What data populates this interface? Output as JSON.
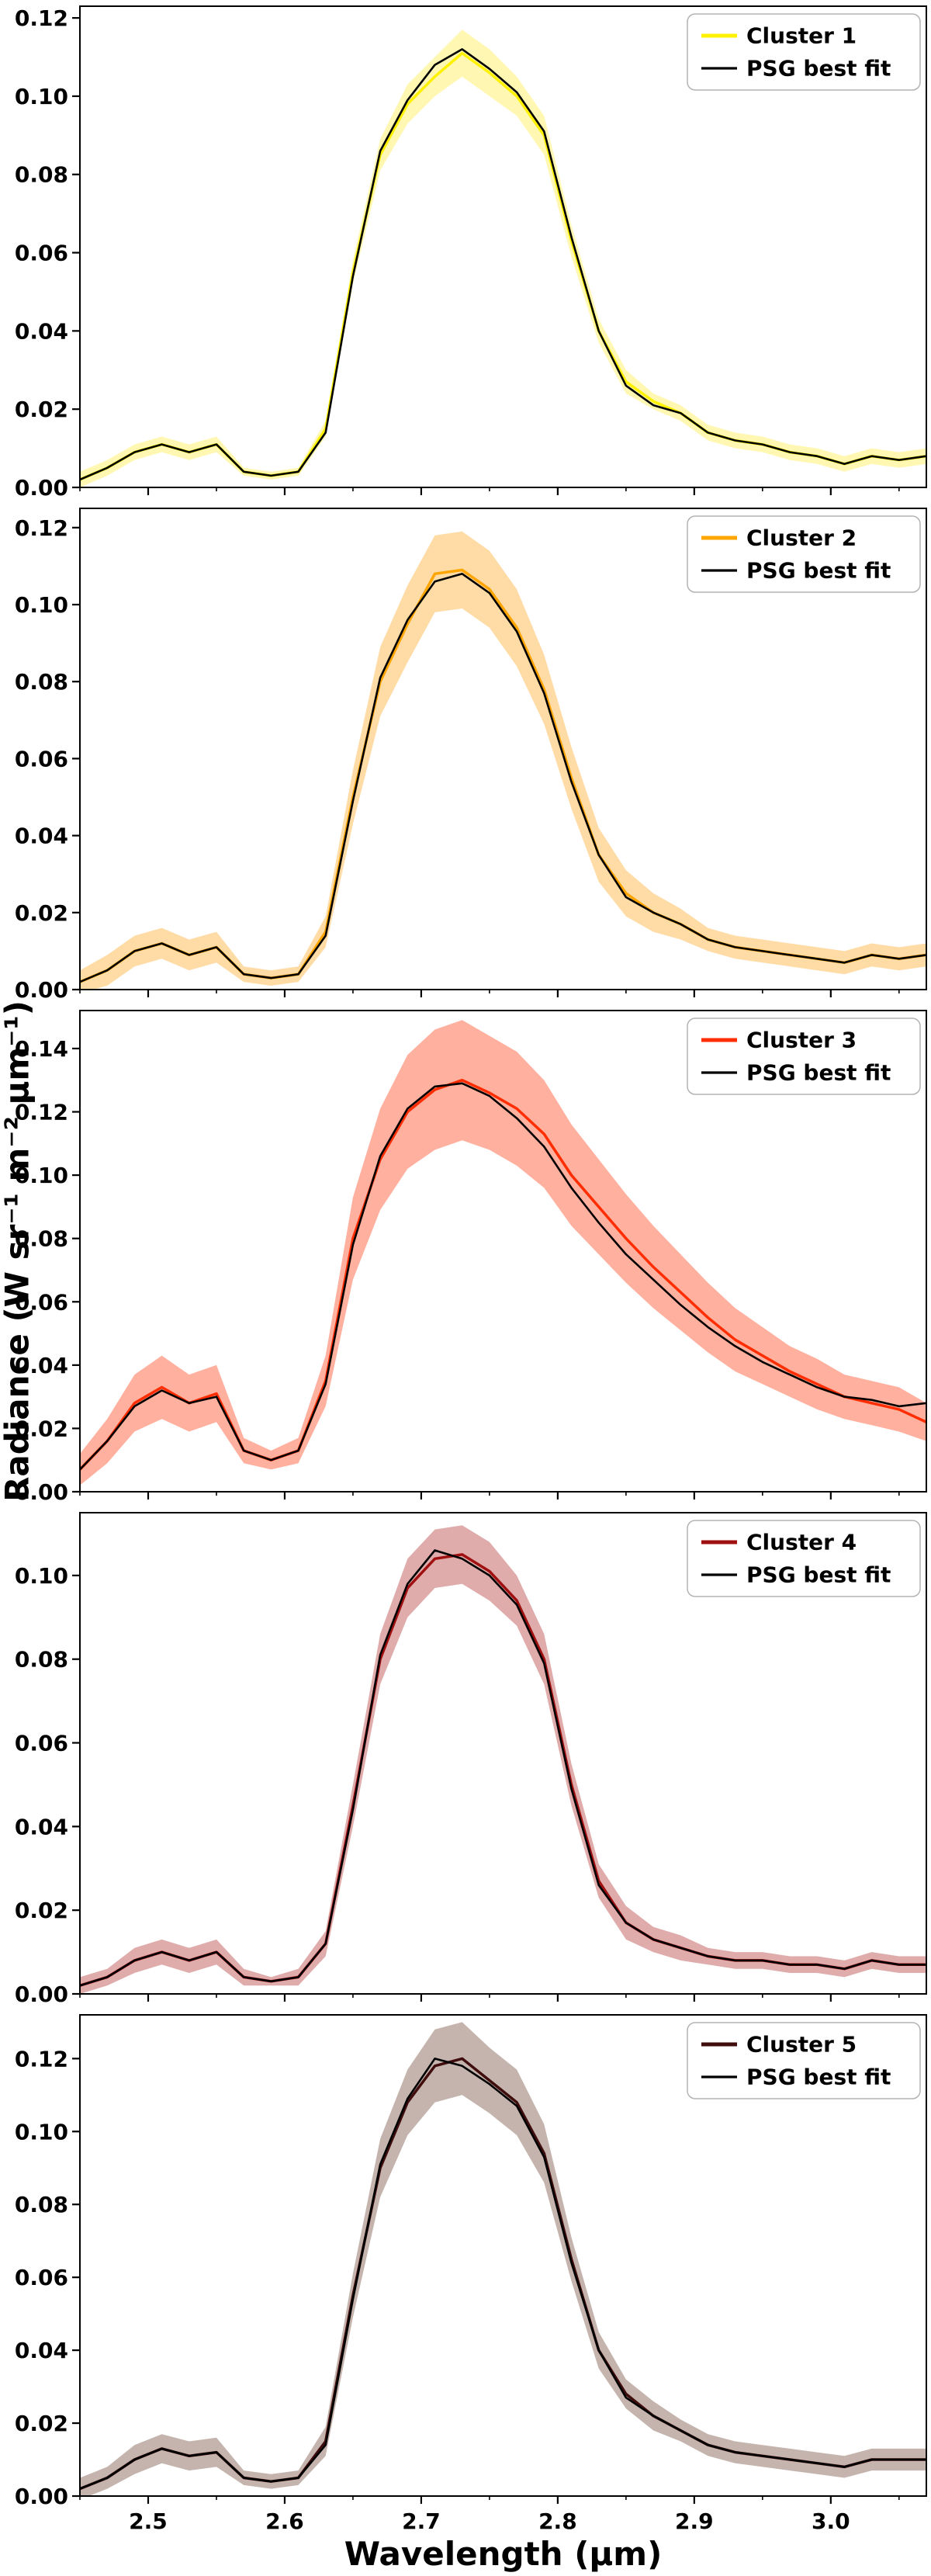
{
  "chart_data": {
    "type": "line",
    "layout": "five vertically stacked spectrum panels sharing one x-axis, grid off, legend upper-right inside each panel",
    "xlabel": "Wavelength (μm)",
    "ylabel": "Radiance (W sr⁻¹ m⁻² μm⁻¹)",
    "xlim": [
      2.45,
      3.07
    ],
    "xticks": [
      2.5,
      2.6,
      2.7,
      2.8,
      2.9,
      3.0
    ],
    "xminorticks": [
      2.45,
      2.55,
      2.65,
      2.75,
      2.85,
      2.95,
      3.05
    ],
    "x": [
      2.45,
      2.47,
      2.49,
      2.51,
      2.53,
      2.55,
      2.57,
      2.59,
      2.61,
      2.63,
      2.65,
      2.67,
      2.69,
      2.71,
      2.73,
      2.75,
      2.77,
      2.79,
      2.81,
      2.83,
      2.85,
      2.87,
      2.89,
      2.91,
      2.93,
      2.95,
      2.97,
      2.99,
      3.01,
      3.03,
      3.05,
      3.07
    ],
    "panels": [
      {
        "legend": [
          "Cluster 1",
          "PSG best fit"
        ],
        "line_color": "#fff200",
        "band_color": "#ffee55",
        "band_opacity": 0.45,
        "fit_color": "#000000",
        "ylim": [
          0,
          0.123
        ],
        "yticks": [
          0.0,
          0.02,
          0.04,
          0.06,
          0.08,
          0.1,
          0.12
        ],
        "mean": [
          0.002,
          0.005,
          0.009,
          0.011,
          0.009,
          0.011,
          0.004,
          0.003,
          0.004,
          0.015,
          0.055,
          0.085,
          0.098,
          0.105,
          0.111,
          0.106,
          0.1,
          0.09,
          0.063,
          0.04,
          0.027,
          0.022,
          0.019,
          0.014,
          0.012,
          0.011,
          0.009,
          0.008,
          0.006,
          0.008,
          0.007,
          0.008
        ],
        "fit": [
          0.002,
          0.005,
          0.009,
          0.011,
          0.009,
          0.011,
          0.004,
          0.003,
          0.004,
          0.014,
          0.054,
          0.086,
          0.099,
          0.108,
          0.112,
          0.107,
          0.101,
          0.091,
          0.064,
          0.04,
          0.026,
          0.021,
          0.019,
          0.014,
          0.012,
          0.011,
          0.009,
          0.008,
          0.006,
          0.008,
          0.007,
          0.008
        ],
        "err": [
          0.002,
          0.002,
          0.002,
          0.002,
          0.002,
          0.002,
          0.001,
          0.001,
          0.001,
          0.002,
          0.003,
          0.004,
          0.005,
          0.005,
          0.006,
          0.006,
          0.005,
          0.005,
          0.004,
          0.003,
          0.003,
          0.002,
          0.002,
          0.002,
          0.002,
          0.002,
          0.002,
          0.002,
          0.002,
          0.002,
          0.002,
          0.002
        ]
      },
      {
        "legend": [
          "Cluster 2",
          "PSG best fit"
        ],
        "line_color": "#ffa500",
        "band_color": "#ffb84d",
        "band_opacity": 0.5,
        "fit_color": "#000000",
        "ylim": [
          0,
          0.125
        ],
        "yticks": [
          0.0,
          0.02,
          0.04,
          0.06,
          0.08,
          0.1,
          0.12
        ],
        "mean": [
          0.002,
          0.005,
          0.01,
          0.012,
          0.009,
          0.011,
          0.004,
          0.003,
          0.004,
          0.015,
          0.05,
          0.08,
          0.095,
          0.108,
          0.109,
          0.104,
          0.094,
          0.078,
          0.055,
          0.035,
          0.025,
          0.02,
          0.017,
          0.013,
          0.011,
          0.01,
          0.009,
          0.008,
          0.007,
          0.009,
          0.008,
          0.009
        ],
        "fit": [
          0.002,
          0.005,
          0.01,
          0.012,
          0.009,
          0.011,
          0.004,
          0.003,
          0.004,
          0.014,
          0.049,
          0.081,
          0.096,
          0.106,
          0.108,
          0.103,
          0.093,
          0.077,
          0.054,
          0.035,
          0.024,
          0.02,
          0.017,
          0.013,
          0.011,
          0.01,
          0.009,
          0.008,
          0.007,
          0.009,
          0.008,
          0.009
        ],
        "err": [
          0.003,
          0.004,
          0.004,
          0.004,
          0.004,
          0.004,
          0.002,
          0.002,
          0.002,
          0.004,
          0.007,
          0.009,
          0.01,
          0.01,
          0.01,
          0.01,
          0.01,
          0.009,
          0.008,
          0.007,
          0.006,
          0.005,
          0.004,
          0.003,
          0.003,
          0.003,
          0.003,
          0.003,
          0.003,
          0.003,
          0.003,
          0.003
        ]
      },
      {
        "legend": [
          "Cluster 3",
          "PSG best fit"
        ],
        "line_color": "#ff2d00",
        "band_color": "#ff7050",
        "band_opacity": 0.55,
        "fit_color": "#000000",
        "ylim": [
          0,
          0.152
        ],
        "yticks": [
          0.0,
          0.02,
          0.04,
          0.06,
          0.08,
          0.1,
          0.12,
          0.14
        ],
        "mean": [
          0.007,
          0.016,
          0.028,
          0.033,
          0.028,
          0.031,
          0.013,
          0.01,
          0.013,
          0.035,
          0.08,
          0.105,
          0.12,
          0.127,
          0.13,
          0.126,
          0.121,
          0.113,
          0.1,
          0.09,
          0.08,
          0.071,
          0.063,
          0.055,
          0.048,
          0.043,
          0.038,
          0.034,
          0.03,
          0.028,
          0.026,
          0.022
        ],
        "fit": [
          0.007,
          0.016,
          0.027,
          0.032,
          0.028,
          0.03,
          0.013,
          0.01,
          0.013,
          0.034,
          0.078,
          0.106,
          0.121,
          0.128,
          0.129,
          0.125,
          0.118,
          0.109,
          0.096,
          0.085,
          0.075,
          0.067,
          0.059,
          0.052,
          0.046,
          0.041,
          0.037,
          0.033,
          0.03,
          0.029,
          0.027,
          0.028
        ],
        "err": [
          0.005,
          0.007,
          0.009,
          0.01,
          0.009,
          0.009,
          0.004,
          0.003,
          0.004,
          0.008,
          0.013,
          0.016,
          0.018,
          0.019,
          0.019,
          0.018,
          0.018,
          0.017,
          0.016,
          0.015,
          0.014,
          0.013,
          0.012,
          0.011,
          0.01,
          0.009,
          0.008,
          0.008,
          0.007,
          0.007,
          0.007,
          0.006
        ]
      },
      {
        "legend": [
          "Cluster 4",
          "PSG best fit"
        ],
        "line_color": "#a01010",
        "band_color": "#c05858",
        "band_opacity": 0.5,
        "fit_color": "#000000",
        "ylim": [
          0,
          0.115
        ],
        "yticks": [
          0.0,
          0.02,
          0.04,
          0.06,
          0.08,
          0.1
        ],
        "mean": [
          0.002,
          0.004,
          0.008,
          0.01,
          0.008,
          0.01,
          0.004,
          0.003,
          0.004,
          0.012,
          0.045,
          0.08,
          0.097,
          0.104,
          0.105,
          0.101,
          0.094,
          0.08,
          0.05,
          0.027,
          0.017,
          0.013,
          0.011,
          0.009,
          0.008,
          0.008,
          0.007,
          0.007,
          0.006,
          0.008,
          0.007,
          0.007
        ],
        "fit": [
          0.002,
          0.004,
          0.008,
          0.01,
          0.008,
          0.01,
          0.004,
          0.003,
          0.004,
          0.012,
          0.044,
          0.081,
          0.098,
          0.106,
          0.104,
          0.1,
          0.093,
          0.079,
          0.049,
          0.026,
          0.017,
          0.013,
          0.011,
          0.009,
          0.008,
          0.008,
          0.007,
          0.007,
          0.006,
          0.008,
          0.007,
          0.007
        ],
        "err": [
          0.002,
          0.002,
          0.003,
          0.003,
          0.003,
          0.003,
          0.002,
          0.001,
          0.002,
          0.003,
          0.005,
          0.006,
          0.007,
          0.007,
          0.007,
          0.007,
          0.006,
          0.006,
          0.005,
          0.004,
          0.004,
          0.003,
          0.003,
          0.002,
          0.002,
          0.002,
          0.002,
          0.002,
          0.002,
          0.002,
          0.002,
          0.002
        ]
      },
      {
        "legend": [
          "Cluster 5",
          "PSG best fit"
        ],
        "line_color": "#400d0d",
        "band_color": "#9c8277",
        "band_opacity": 0.6,
        "fit_color": "#000000",
        "ylim": [
          0,
          0.132
        ],
        "yticks": [
          0.0,
          0.02,
          0.04,
          0.06,
          0.08,
          0.1,
          0.12
        ],
        "mean": [
          0.002,
          0.005,
          0.01,
          0.013,
          0.011,
          0.012,
          0.005,
          0.004,
          0.005,
          0.015,
          0.055,
          0.09,
          0.108,
          0.118,
          0.12,
          0.114,
          0.108,
          0.094,
          0.065,
          0.04,
          0.028,
          0.022,
          0.018,
          0.014,
          0.012,
          0.011,
          0.01,
          0.009,
          0.008,
          0.01,
          0.01,
          0.01
        ],
        "fit": [
          0.002,
          0.005,
          0.01,
          0.013,
          0.011,
          0.012,
          0.005,
          0.004,
          0.005,
          0.014,
          0.054,
          0.091,
          0.109,
          0.12,
          0.118,
          0.113,
          0.107,
          0.093,
          0.064,
          0.04,
          0.027,
          0.022,
          0.018,
          0.014,
          0.012,
          0.011,
          0.01,
          0.009,
          0.008,
          0.01,
          0.01,
          0.01
        ],
        "err": [
          0.003,
          0.003,
          0.004,
          0.004,
          0.004,
          0.004,
          0.002,
          0.002,
          0.002,
          0.004,
          0.006,
          0.008,
          0.009,
          0.01,
          0.01,
          0.009,
          0.009,
          0.008,
          0.006,
          0.005,
          0.004,
          0.004,
          0.003,
          0.003,
          0.003,
          0.003,
          0.003,
          0.003,
          0.003,
          0.003,
          0.003,
          0.003
        ]
      }
    ]
  }
}
